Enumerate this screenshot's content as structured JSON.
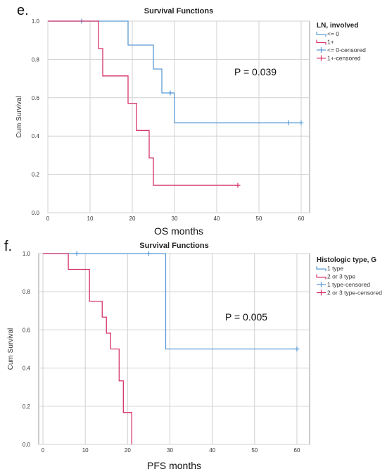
{
  "chart_data": [
    {
      "type": "line",
      "panel_label": "e.",
      "title": "Survival Functions",
      "xlabel": "OS months",
      "ylabel": "Cum Survival",
      "xlim": [
        0,
        62
      ],
      "ylim": [
        0,
        1.0
      ],
      "x_ticks": [
        "0",
        "10",
        "20",
        "30",
        "40",
        "50",
        "60"
      ],
      "y_ticks": [
        "0.0",
        "0.2",
        "0.4",
        "0.6",
        "0.8",
        "1.0"
      ],
      "grid": true,
      "annotation": "P = 0.039",
      "legend_title": "LN, involved",
      "legend_position": "right",
      "legend": [
        {
          "label": "<= 0",
          "kind": "line",
          "color": "#5b9bd5"
        },
        {
          "label": "1+",
          "kind": "line",
          "color": "#d6336c"
        },
        {
          "label": "<= 0-censored",
          "kind": "censor",
          "color": "#5b9bd5"
        },
        {
          "label": "1+-censored",
          "kind": "censor",
          "color": "#d6336c"
        }
      ],
      "series": [
        {
          "color": "#5b9bd5",
          "steps": [
            [
              0,
              1.0
            ],
            [
              19,
              0.875
            ],
            [
              25,
              0.75
            ],
            [
              27,
              0.625
            ],
            [
              30,
              0.469
            ],
            [
              60,
              0.469
            ]
          ],
          "censored": [
            [
              8,
              1.0
            ],
            [
              29,
              0.625
            ],
            [
              57,
              0.469
            ],
            [
              60,
              0.469
            ]
          ]
        },
        {
          "color": "#d6336c",
          "steps": [
            [
              0,
              1.0
            ],
            [
              12,
              0.857
            ],
            [
              13,
              0.714
            ],
            [
              19,
              0.571
            ],
            [
              21,
              0.429
            ],
            [
              24,
              0.286
            ],
            [
              25,
              0.143
            ],
            [
              45,
              0.143
            ]
          ],
          "censored": [
            [
              45,
              0.143
            ]
          ]
        }
      ]
    },
    {
      "type": "line",
      "panel_label": "f.",
      "title": "Survival Functions",
      "xlabel": "PFS months",
      "ylabel": "Cum Survival",
      "xlim": [
        -1,
        63
      ],
      "ylim": [
        0,
        1.0
      ],
      "x_ticks": [
        "0",
        "10",
        "20",
        "30",
        "40",
        "50",
        "60"
      ],
      "y_ticks": [
        "0.0",
        "0.2",
        "0.4",
        "0.6",
        "0.8",
        "1.0"
      ],
      "grid": true,
      "annotation": "P = 0.005",
      "legend_title": "Histologic type, G",
      "legend_position": "right",
      "legend": [
        {
          "label": "1 type",
          "kind": "line",
          "color": "#5b9bd5"
        },
        {
          "label": "2 or 3 type",
          "kind": "line",
          "color": "#d6336c"
        },
        {
          "label": "1 type-censored",
          "kind": "censor",
          "color": "#5b9bd5"
        },
        {
          "label": "2 or 3 type-censored",
          "kind": "censor",
          "color": "#d6336c"
        }
      ],
      "series": [
        {
          "color": "#5b9bd5",
          "steps": [
            [
              0,
              1.0
            ],
            [
              29,
              0.5
            ],
            [
              60,
              0.5
            ]
          ],
          "censored": [
            [
              8,
              1.0
            ],
            [
              25,
              1.0
            ],
            [
              60,
              0.5
            ]
          ]
        },
        {
          "color": "#d6336c",
          "steps": [
            [
              0,
              1.0
            ],
            [
              6,
              0.917
            ],
            [
              11,
              0.75
            ],
            [
              14,
              0.667
            ],
            [
              15,
              0.583
            ],
            [
              16,
              0.5
            ],
            [
              18,
              0.333
            ],
            [
              19,
              0.167
            ],
            [
              21,
              0.0
            ]
          ],
          "censored": []
        }
      ]
    }
  ]
}
